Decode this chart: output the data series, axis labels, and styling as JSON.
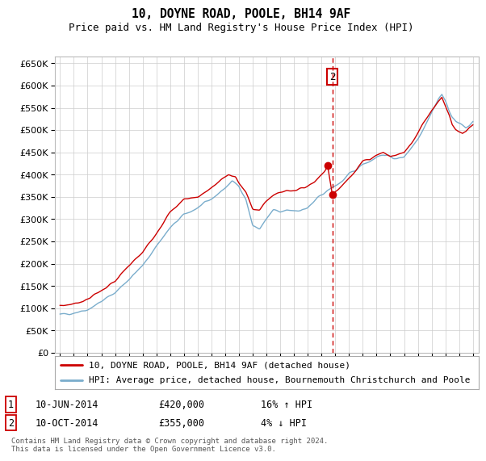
{
  "title": "10, DOYNE ROAD, POOLE, BH14 9AF",
  "subtitle": "Price paid vs. HM Land Registry's House Price Index (HPI)",
  "ylim": [
    0,
    650000
  ],
  "yticks": [
    0,
    50000,
    100000,
    150000,
    200000,
    250000,
    300000,
    350000,
    400000,
    450000,
    500000,
    550000,
    600000,
    650000
  ],
  "x_start_year": 1995,
  "x_end_year": 2025,
  "red_color": "#cc0000",
  "blue_color": "#7aadcc",
  "grid_color": "#cccccc",
  "bg_color": "#ffffff",
  "legend_label_red": "10, DOYNE ROAD, POOLE, BH14 9AF (detached house)",
  "legend_label_blue": "HPI: Average price, detached house, Bournemouth Christchurch and Poole",
  "transaction1_date": "10-JUN-2014",
  "transaction1_price": "£420,000",
  "transaction1_hpi": "16% ↑ HPI",
  "transaction2_date": "10-OCT-2014",
  "transaction2_price": "£355,000",
  "transaction2_hpi": "4% ↓ HPI",
  "footer": "Contains HM Land Registry data © Crown copyright and database right 2024.\nThis data is licensed under the Open Government Licence v3.0.",
  "sale1_year": 2014.45,
  "sale1_value": 420000,
  "sale2_year": 2014.78,
  "sale2_value": 355000,
  "vline_year": 2014.78
}
